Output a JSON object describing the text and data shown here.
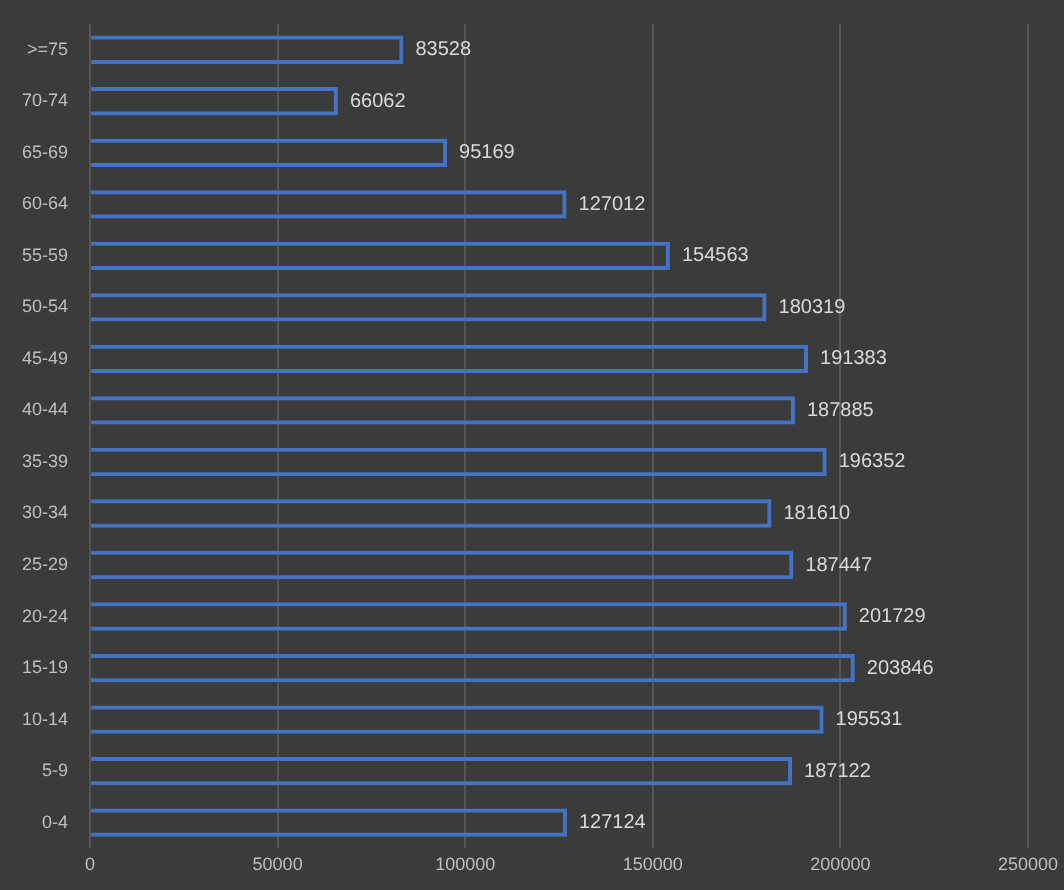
{
  "chart_data": {
    "type": "bar",
    "orientation": "horizontal",
    "categories": [
      ">=75",
      "70-74",
      "65-69",
      "60-64",
      "55-59",
      "50-54",
      "45-49",
      "40-44",
      "35-39",
      "30-34",
      "25-29",
      "20-24",
      "15-19",
      "10-14",
      "5-9",
      "0-4"
    ],
    "values": [
      83528,
      66062,
      95169,
      127012,
      154563,
      180319,
      191383,
      187885,
      196352,
      181610,
      187447,
      201729,
      203846,
      195531,
      187122,
      127124
    ],
    "color": "#4472c4",
    "xlim": [
      0,
      250000
    ],
    "xticks": [
      0,
      50000,
      100000,
      150000,
      200000,
      250000
    ],
    "grid": "x",
    "data_labels": true,
    "legend": false
  }
}
